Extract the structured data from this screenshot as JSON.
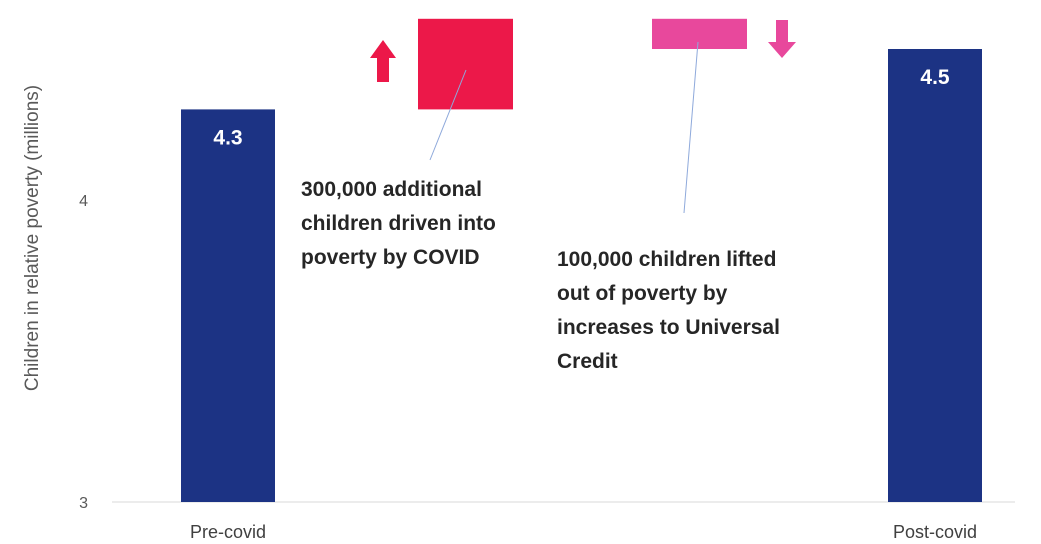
{
  "chart_data": {
    "type": "bar",
    "subtype": "waterfall",
    "ylabel": "Children in relative poverty (millions)",
    "ylim": [
      3,
      4.6
    ],
    "yticks": [
      3,
      4
    ],
    "categories": [
      "Pre-covid",
      "Post-covid"
    ],
    "bars": [
      {
        "category": "Pre-covid",
        "value": 4.3,
        "label": "4.3",
        "color": "#1c3384"
      },
      {
        "category": "Post-covid",
        "value": 4.5,
        "label": "4.5",
        "color": "#1c3384"
      }
    ],
    "changes": [
      {
        "from": 4.3,
        "to": 4.6,
        "delta": 0.3,
        "direction": "up",
        "color": "#ec1849",
        "annotation": [
          "300,000 additional",
          "children driven into",
          "poverty by COVID"
        ]
      },
      {
        "from": 4.6,
        "to": 4.5,
        "delta": -0.1,
        "direction": "down",
        "color": "#e8489c",
        "annotation": [
          "100,000 children lifted",
          "out of poverty by",
          "increases to Universal",
          "Credit"
        ]
      }
    ],
    "grid": false,
    "legend": "none"
  }
}
